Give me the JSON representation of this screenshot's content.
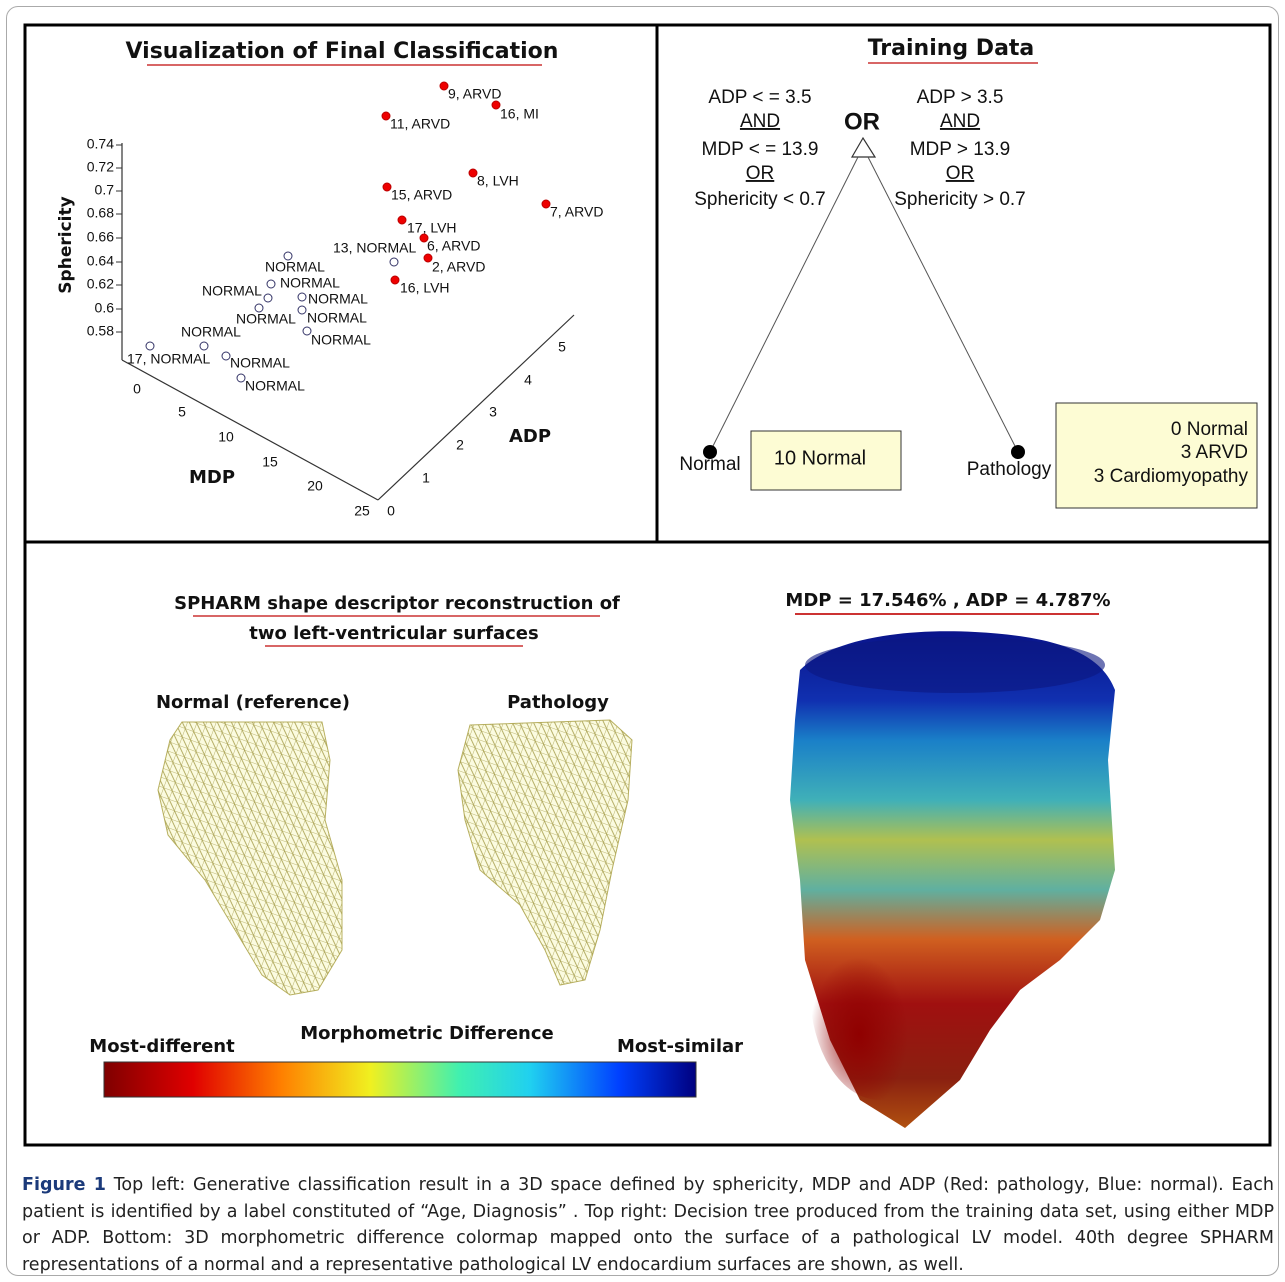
{
  "top_left": {
    "title": "Visualization of Final Classification",
    "y_axis_label": "Sphericity",
    "x_axis_label": "MDP",
    "z_axis_label": "ADP",
    "sphericity_ticks": [
      0.74,
      0.72,
      0.7,
      0.68,
      0.66,
      0.64,
      0.62,
      0.6,
      0.58
    ],
    "mdp_ticks": [
      0,
      5,
      10,
      15,
      20,
      25
    ],
    "adp_ticks": [
      0,
      1,
      2,
      3,
      4,
      5
    ],
    "point_labels": [
      "9, ARVD",
      "16, MI",
      "11, ARVD",
      "8, LVH",
      "7, ARVD",
      "15, ARVD",
      "17, LVH",
      "6, ARVD",
      "2, ARVD",
      "16, LVH",
      "13, NORMAL",
      "NORMAL",
      "NORMAL",
      "NORMAL",
      "NORMAL",
      "NORMAL",
      "NORMAL",
      "NORMAL",
      "NORMAL",
      "17, NORMAL",
      "NORMAL",
      "NORMAL"
    ]
  },
  "top_right": {
    "title": "Training Data",
    "operator": "OR",
    "left_condition": [
      "ADP < = 3.5",
      "AND",
      "MDP < = 13.9",
      "OR",
      "Sphericity < 0.7"
    ],
    "right_condition": [
      "ADP > 3.5",
      "AND",
      "MDP > 13.9",
      "OR",
      "Sphericity > 0.7"
    ],
    "left_leaf": {
      "label": "Normal",
      "box": [
        "10  Normal"
      ]
    },
    "right_leaf": {
      "label": "Pathology",
      "box": [
        "0 Normal",
        "3 ARVD",
        "3 Cardiomyopathy"
      ]
    }
  },
  "bottom": {
    "title_lines": [
      "SPHARM shape descriptor reconstruction of",
      "two left-ventricular surfaces"
    ],
    "normal_label": "Normal (reference)",
    "pathology_label": "Pathology",
    "colormap_title": "MDP = 17.546% , ADP = 4.787%",
    "colorbar_title": "Morphometric Difference",
    "colorbar_left": "Most-different",
    "colorbar_right": "Most-similar"
  },
  "caption": {
    "label": "Figure 1",
    "text": "Top left: Generative classification result in a 3D space defined by sphericity, MDP and ADP (Red: pathology, Blue: normal). Each patient is identified by a label constituted of “Age, Diagnosis” . Top right: Decision tree produced from the training data set, using either MDP or ADP. Bottom: 3D morphometric difference colormap mapped onto the surface of a pathological LV model. 40th degree SPHARM representations of a normal and a representative pathological LV endocardium surfaces are shown, as well."
  }
}
